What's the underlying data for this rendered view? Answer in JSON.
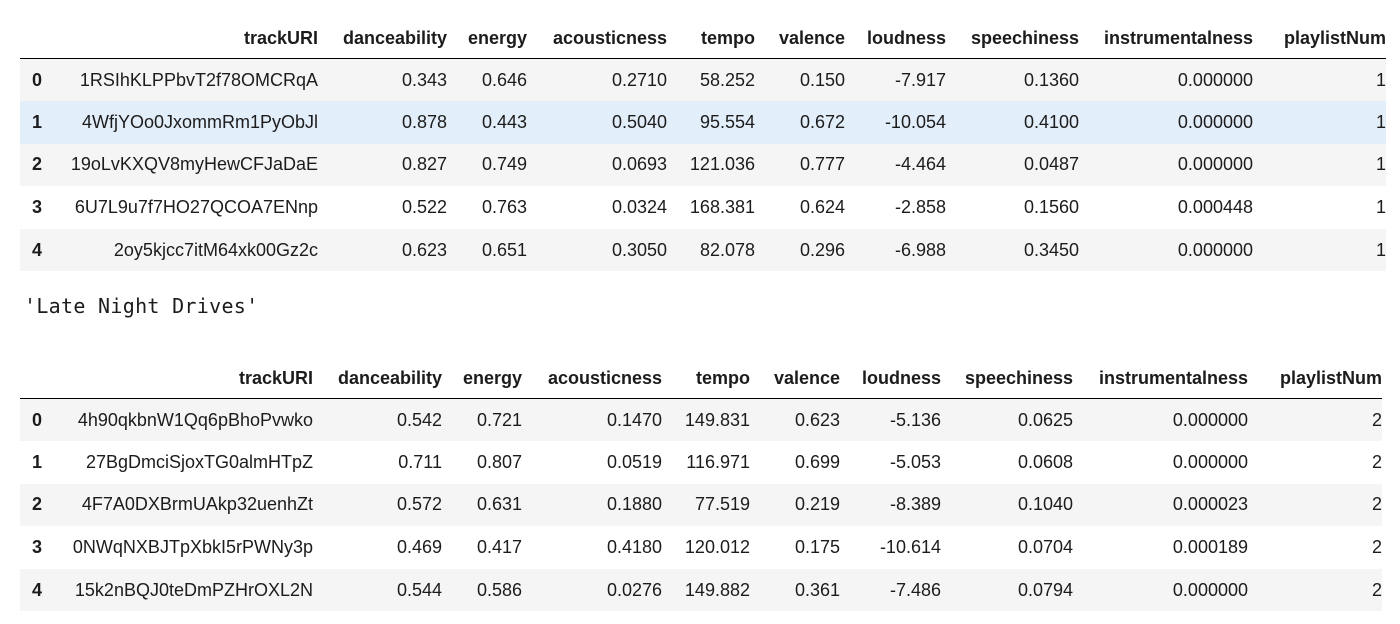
{
  "tables": [
    {
      "columns": [
        "",
        "trackURI",
        "danceability",
        "energy",
        "acousticness",
        "tempo",
        "valence",
        "loudness",
        "speechiness",
        "instrumentalness",
        "playlistNum"
      ],
      "rows": [
        [
          "0",
          "1RSIhKLPPbvT2f78OMCRqA",
          "0.343",
          "0.646",
          "0.2710",
          "58.252",
          "0.150",
          "-7.917",
          "0.1360",
          "0.000000",
          "1"
        ],
        [
          "1",
          "4WfjYOo0JxommRm1PyObJl",
          "0.878",
          "0.443",
          "0.5040",
          "95.554",
          "0.672",
          "-10.054",
          "0.4100",
          "0.000000",
          "1"
        ],
        [
          "2",
          "19oLvKXQV8myHewCFJaDaE",
          "0.827",
          "0.749",
          "0.0693",
          "121.036",
          "0.777",
          "-4.464",
          "0.0487",
          "0.000000",
          "1"
        ],
        [
          "3",
          "6U7L9u7f7HO27QCOA7ENnp",
          "0.522",
          "0.763",
          "0.0324",
          "168.381",
          "0.624",
          "-2.858",
          "0.1560",
          "0.000448",
          "1"
        ],
        [
          "4",
          "2oy5kjcc7itM64xk00Gz2c",
          "0.623",
          "0.651",
          "0.3050",
          "82.078",
          "0.296",
          "-6.988",
          "0.3450",
          "0.000000",
          "1"
        ]
      ],
      "hovered_row": 1
    },
    {
      "columns": [
        "",
        "trackURI",
        "danceability",
        "energy",
        "acousticness",
        "tempo",
        "valence",
        "loudness",
        "speechiness",
        "instrumentalness",
        "playlistNum"
      ],
      "rows": [
        [
          "0",
          "4h90qkbnW1Qq6pBhoPvwko",
          "0.542",
          "0.721",
          "0.1470",
          "149.831",
          "0.623",
          "-5.136",
          "0.0625",
          "0.000000",
          "2"
        ],
        [
          "1",
          "27BgDmciSjoxTG0almHTpZ",
          "0.711",
          "0.807",
          "0.0519",
          "116.971",
          "0.699",
          "-5.053",
          "0.0608",
          "0.000000",
          "2"
        ],
        [
          "2",
          "4F7A0DXBrmUAkp32uenhZt",
          "0.572",
          "0.631",
          "0.1880",
          "77.519",
          "0.219",
          "-8.389",
          "0.1040",
          "0.000023",
          "2"
        ],
        [
          "3",
          "0NWqNXBJTpXbkI5rPWNy3p",
          "0.469",
          "0.417",
          "0.4180",
          "120.012",
          "0.175",
          "-10.614",
          "0.0704",
          "0.000189",
          "2"
        ],
        [
          "4",
          "15k2nBQJ0teDmPZHrOXL2N",
          "0.544",
          "0.586",
          "0.0276",
          "149.882",
          "0.361",
          "-7.486",
          "0.0794",
          "0.000000",
          "2"
        ]
      ],
      "hovered_row": null
    }
  ],
  "output_caption": "'Late Night Drives'",
  "colors": {
    "row_stripe": "#f5f5f5",
    "row_hover": "#e3eefb",
    "header_rule": "#000000"
  }
}
